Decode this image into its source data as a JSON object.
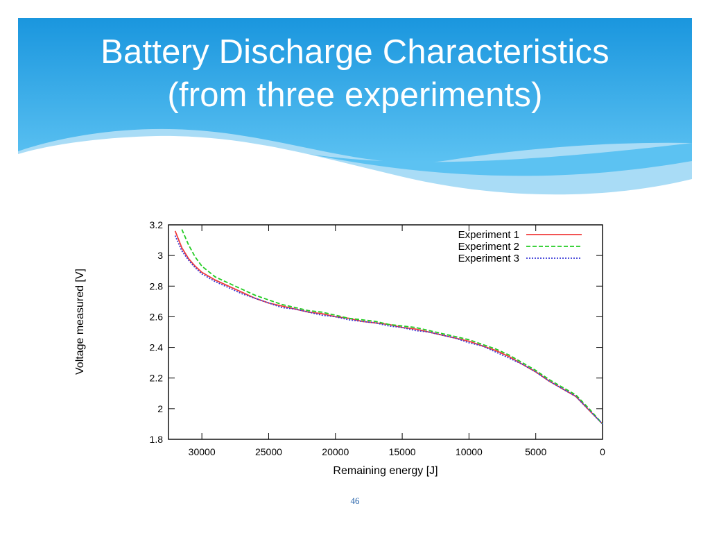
{
  "slide": {
    "title_line1": "Battery Discharge Characteristics",
    "title_line2": "(from three experiments)",
    "page_number": "46",
    "header_colors": {
      "dark": "#1a96de",
      "light": "#5cc2f2",
      "pale": "#a9dcf6"
    }
  },
  "chart_data": {
    "type": "line",
    "title": "",
    "xlabel": "Remaining energy [J]",
    "ylabel": "Voltage measured [V]",
    "xlim": [
      32500,
      0
    ],
    "ylim": [
      1.8,
      3.2
    ],
    "x_reversed": true,
    "xticks": [
      30000,
      25000,
      20000,
      15000,
      10000,
      5000,
      0
    ],
    "xtick_labels": [
      "30000",
      "25000",
      "20000",
      "15000",
      "10000",
      "5000",
      "0"
    ],
    "yticks": [
      1.8,
      2.0,
      2.2,
      2.4,
      2.6,
      2.8,
      3.0,
      3.2
    ],
    "ytick_labels": [
      "1.8",
      "2",
      "2.2",
      "2.4",
      "2.6",
      "2.8",
      "3",
      "3.2"
    ],
    "grid": false,
    "legend_position": "top-right",
    "series": [
      {
        "name": "Experiment 1",
        "color": "#f03c3c",
        "dash": "solid",
        "points": [
          [
            32000,
            3.16
          ],
          [
            31500,
            3.05
          ],
          [
            31000,
            2.98
          ],
          [
            30500,
            2.93
          ],
          [
            30000,
            2.89
          ],
          [
            29000,
            2.84
          ],
          [
            28000,
            2.8
          ],
          [
            27000,
            2.76
          ],
          [
            26000,
            2.72
          ],
          [
            25000,
            2.69
          ],
          [
            24000,
            2.67
          ],
          [
            23000,
            2.65
          ],
          [
            22000,
            2.63
          ],
          [
            21000,
            2.62
          ],
          [
            20000,
            2.6
          ],
          [
            19000,
            2.59
          ],
          [
            18000,
            2.57
          ],
          [
            17000,
            2.56
          ],
          [
            16000,
            2.55
          ],
          [
            15000,
            2.53
          ],
          [
            14000,
            2.52
          ],
          [
            13000,
            2.5
          ],
          [
            12000,
            2.48
          ],
          [
            11000,
            2.46
          ],
          [
            10000,
            2.44
          ],
          [
            9000,
            2.41
          ],
          [
            8000,
            2.38
          ],
          [
            7000,
            2.34
          ],
          [
            6000,
            2.29
          ],
          [
            5000,
            2.24
          ],
          [
            4000,
            2.18
          ],
          [
            3000,
            2.13
          ],
          [
            2000,
            2.08
          ],
          [
            1000,
            1.99
          ],
          [
            0,
            1.9
          ]
        ]
      },
      {
        "name": "Experiment 2",
        "color": "#22cc22",
        "dash": "dashed",
        "points": [
          [
            31500,
            3.17
          ],
          [
            31000,
            3.07
          ],
          [
            30500,
            2.99
          ],
          [
            30000,
            2.93
          ],
          [
            29000,
            2.86
          ],
          [
            28000,
            2.82
          ],
          [
            27000,
            2.78
          ],
          [
            26000,
            2.74
          ],
          [
            25000,
            2.71
          ],
          [
            24000,
            2.68
          ],
          [
            23000,
            2.66
          ],
          [
            22000,
            2.64
          ],
          [
            21000,
            2.63
          ],
          [
            20000,
            2.61
          ],
          [
            19000,
            2.59
          ],
          [
            18000,
            2.58
          ],
          [
            17000,
            2.57
          ],
          [
            16000,
            2.55
          ],
          [
            15000,
            2.54
          ],
          [
            14000,
            2.53
          ],
          [
            13000,
            2.51
          ],
          [
            12000,
            2.49
          ],
          [
            11000,
            2.47
          ],
          [
            10000,
            2.45
          ],
          [
            9000,
            2.42
          ],
          [
            8000,
            2.39
          ],
          [
            7000,
            2.35
          ],
          [
            6000,
            2.3
          ],
          [
            5000,
            2.25
          ],
          [
            4000,
            2.19
          ],
          [
            3000,
            2.14
          ],
          [
            2000,
            2.09
          ],
          [
            1000,
            2.0
          ],
          [
            0,
            1.9
          ]
        ]
      },
      {
        "name": "Experiment 3",
        "color": "#3a3ad8",
        "dash": "dotted",
        "points": [
          [
            32000,
            3.13
          ],
          [
            31500,
            3.03
          ],
          [
            31000,
            2.97
          ],
          [
            30500,
            2.92
          ],
          [
            30000,
            2.88
          ],
          [
            29000,
            2.83
          ],
          [
            28000,
            2.79
          ],
          [
            27000,
            2.75
          ],
          [
            26000,
            2.72
          ],
          [
            25000,
            2.69
          ],
          [
            24000,
            2.66
          ],
          [
            23000,
            2.65
          ],
          [
            22000,
            2.63
          ],
          [
            21000,
            2.61
          ],
          [
            20000,
            2.6
          ],
          [
            19000,
            2.58
          ],
          [
            18000,
            2.57
          ],
          [
            17000,
            2.56
          ],
          [
            16000,
            2.54
          ],
          [
            15000,
            2.53
          ],
          [
            14000,
            2.51
          ],
          [
            13000,
            2.5
          ],
          [
            12000,
            2.48
          ],
          [
            11000,
            2.46
          ],
          [
            10000,
            2.43
          ],
          [
            9000,
            2.41
          ],
          [
            8000,
            2.37
          ],
          [
            7000,
            2.33
          ],
          [
            6000,
            2.29
          ],
          [
            5000,
            2.24
          ],
          [
            4000,
            2.18
          ],
          [
            3000,
            2.13
          ],
          [
            2000,
            2.08
          ],
          [
            1000,
            1.99
          ],
          [
            0,
            1.9
          ]
        ]
      }
    ]
  }
}
